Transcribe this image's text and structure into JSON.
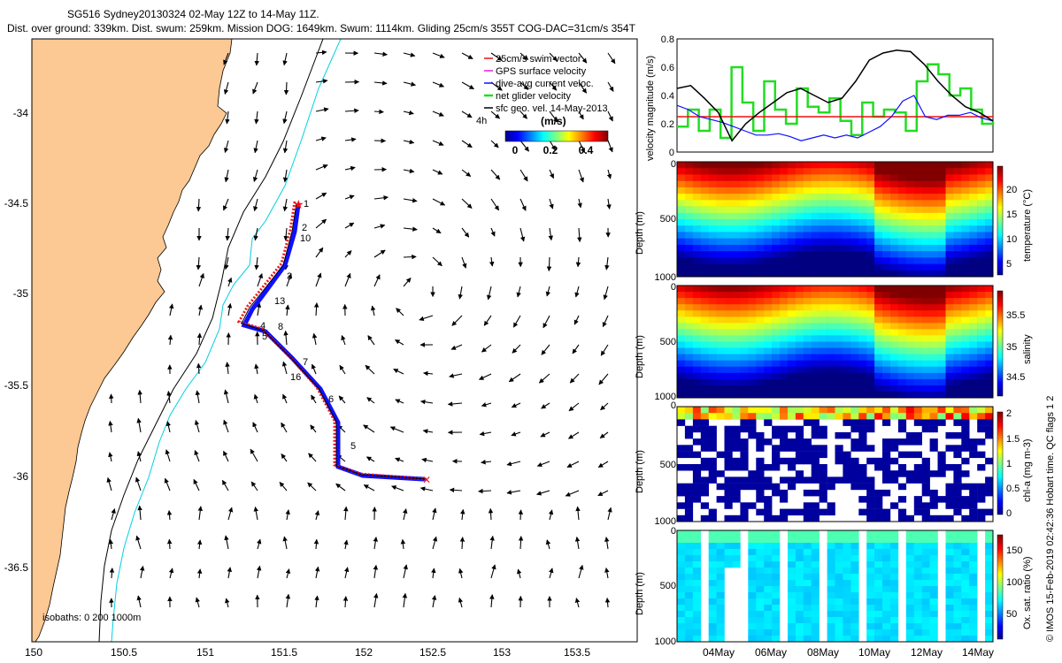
{
  "header": {
    "line1": "SG516 Sydney20130324 02-May 12Z to 14-May 11Z.",
    "line2": "Dist. over ground: 339km. Dist. swum: 259km. Mission DOG: 1649km. Swum: 1114km. Gliding 25cm/s 355T COG-DAC=31cm/s 354T"
  },
  "map": {
    "lon_ticks": [
      "150",
      "150.5",
      "151",
      "151.5",
      "152",
      "152.5",
      "153",
      "153.5"
    ],
    "lat_ticks": [
      "-34",
      "-34.5",
      "-35",
      "-35.5",
      "-36",
      "-36.5"
    ],
    "legend": {
      "swim": "25cm/s swim vector",
      "gps": "GPS surface velocity",
      "dac": "dive-avg current veloc.",
      "net": "net glider velocity",
      "sfc": "sfc geo. vel. 14-May-2013",
      "hours": "4h"
    },
    "colorbar": {
      "title": "(m/s)",
      "ticks": [
        "0",
        "0.2",
        "0.4"
      ]
    },
    "isobaths": "isobaths: 0   200   1000m",
    "track_labels": [
      "1",
      "2",
      "10",
      "3",
      "13",
      "4",
      "8",
      "5",
      "7",
      "16",
      "6",
      "5"
    ]
  },
  "timeseries": {
    "ylabel": "velocity magnitude (m/s)",
    "yticks": [
      "0",
      "0.2",
      "0.4",
      "0.6",
      "0.8"
    ],
    "x_dates": [
      "04May",
      "06May",
      "08May",
      "10May",
      "12May",
      "14May"
    ]
  },
  "sections": [
    {
      "ylabel": "Depth (m)",
      "cb_label": "temperature (°C)",
      "cb_ticks": [
        "20",
        "15",
        "10",
        "5"
      ],
      "yticks": [
        "0",
        "500",
        "1000"
      ]
    },
    {
      "ylabel": "Depth (m)",
      "cb_label": "salinity",
      "cb_ticks": [
        "35.5",
        "35",
        "34.5"
      ],
      "yticks": [
        "0",
        "500",
        "1000"
      ]
    },
    {
      "ylabel": "Depth (m)",
      "cb_label": "chl-a (mg m-3)",
      "cb_ticks": [
        "2",
        "1.5",
        "1",
        "0.5",
        "0"
      ],
      "yticks": [
        "0",
        "500",
        "1000"
      ]
    },
    {
      "ylabel": "Depth (m)",
      "cb_label": "Ox. sat. ratio (%)",
      "cb_ticks": [
        "150",
        "100",
        "50"
      ],
      "yticks": [
        "0",
        "500",
        "1000"
      ]
    }
  ],
  "credit": "© IMOS 15-Feb-2019 02:42:36 Hobart time. QC flags 1  2",
  "chart_data": {
    "type": "map+timeseries",
    "map": {
      "xlim": [
        149.9,
        153.9
      ],
      "ylim": [
        -36.95,
        -33.6
      ]
    },
    "velocity": {
      "ylim": [
        0,
        0.8
      ],
      "swim_speed": 0.25,
      "dac_magnitude": [
        0.33,
        0.3,
        0.25,
        0.23,
        0.21,
        0.18,
        0.15,
        0.12,
        0.12,
        0.13,
        0.11,
        0.08,
        0.1,
        0.12,
        0.1,
        0.12,
        0.1,
        0.14,
        0.18,
        0.25,
        0.36,
        0.4,
        0.25,
        0.23,
        0.26,
        0.26,
        0.28,
        0.24,
        0.22
      ],
      "sfc_geo_magnitude": [
        0.45,
        0.47,
        0.38,
        0.28,
        0.08,
        0.2,
        0.28,
        0.35,
        0.42,
        0.45,
        0.4,
        0.35,
        0.38,
        0.5,
        0.65,
        0.7,
        0.72,
        0.71,
        0.62,
        0.5,
        0.4,
        0.32,
        0.28,
        0.22
      ],
      "net_magnitude": [
        0.18,
        0.3,
        0.15,
        0.3,
        0.1,
        0.6,
        0.35,
        0.15,
        0.5,
        0.3,
        0.2,
        0.45,
        0.32,
        0.28,
        0.38,
        0.22,
        0.12,
        0.35,
        0.25,
        0.3,
        0.28,
        0.15,
        0.5,
        0.62,
        0.55,
        0.4,
        0.45,
        0.3,
        0.2,
        0.22
      ]
    },
    "sections": [
      {
        "variable": "temperature (°C)",
        "clim": [
          4,
          24
        ],
        "depth_range": [
          0,
          1000
        ]
      },
      {
        "variable": "salinity",
        "clim": [
          34.3,
          35.8
        ],
        "depth_range": [
          0,
          1000
        ]
      },
      {
        "variable": "chl-a (mg m-3)",
        "clim": [
          0,
          2
        ],
        "depth_range": [
          0,
          1000
        ]
      },
      {
        "variable": "Ox. sat. ratio (%)",
        "clim": [
          20,
          175
        ],
        "depth_range": [
          0,
          1000
        ]
      }
    ]
  }
}
